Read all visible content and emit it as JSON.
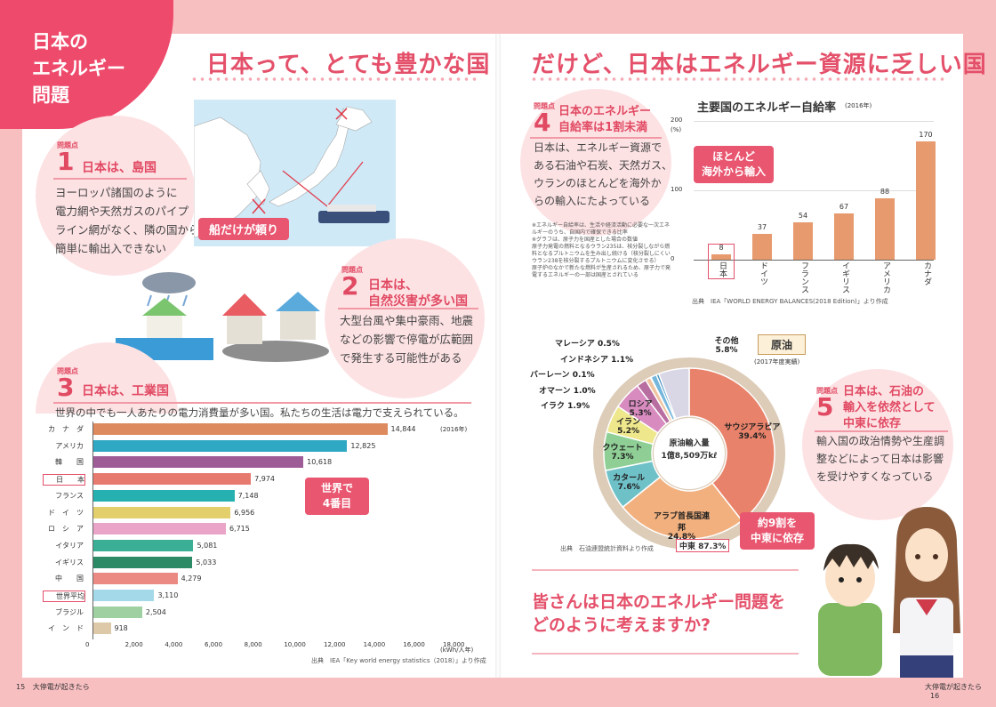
{
  "corner_title": "日本の\nエネルギー\n問題",
  "left_heading": "日本って、とても豊かな国",
  "right_heading": "だけど、日本はエネルギー資源に乏しい国",
  "point_word": "問題点",
  "point1": {
    "num": "1",
    "title": "日本は、島国",
    "text": "ヨーロッパ諸国のように\n電力網や天然ガスのパイプ\nライン網がなく、隣の国から\n簡単に輸出入できない"
  },
  "ship_label": "船だけが頼り",
  "point2": {
    "num": "2",
    "title": "日本は、\n自然災害が多い国",
    "text": "大型台風や集中豪雨、地震\nなどの影響で停電が広範囲\nで発生する可能性がある"
  },
  "point3": {
    "num": "3",
    "title": "日本は、工業国",
    "text": "世界の中でも一人あたりの電力消費量が多い国。私たちの生活は電力で支えられている。"
  },
  "point4": {
    "num": "4",
    "title": "日本のエネルギー\n自給率は1割未満",
    "text": "日本は、エネルギー資源で\nある石油や石炭、天然ガス、\nウランのほとんどを海外か\nらの輸入にたよっている"
  },
  "point4_note": "※エネルギー自給率は、生活や経済活動に必要な一次エネルギーのうち、自国内で確保できる比率\n※グラフは、原子力を国産とした場合の数値\n原子力発電の燃料となるウラン235は、核分裂しながら燃料となるプルトニウムを生み出し続ける（核分裂しにくいウラン238を核分裂するプルトニウムに変化させる）\n原子炉のなかで新たな燃料が生産されるため、原子力で発電するエネルギーの一部は国産とされている",
  "point5": {
    "num": "5",
    "title": "日本は、石油の\n輸入を依然として\n中東に依存",
    "text": "輸入国の政治情勢や生産調\n整などによって日本は影響\nを受けやすくなっている"
  },
  "question": "皆さんは日本のエネルギー問題を\nどのように考えますか?",
  "page_left": {
    "num": "15",
    "label": "大停電が起きたら"
  },
  "page_right": {
    "num": "16",
    "label": "大停電が起きたら"
  },
  "chart_data": [
    {
      "type": "bar",
      "orientation": "horizontal",
      "year_note": "(2016年)",
      "categories": [
        "カ　ナ　ダ",
        "アメリカ",
        "韓　　国",
        "日　　本",
        "フランス",
        "ド　イ　ツ",
        "ロ　シ　ア",
        "イタリア",
        "イギリス",
        "中　　国",
        "世界平均",
        "ブラジル",
        "イ　ン　ド"
      ],
      "values": [
        14844,
        12825,
        10618,
        7974,
        7148,
        6956,
        6715,
        5081,
        5033,
        4279,
        3110,
        2504,
        918
      ],
      "value_labels": [
        "14,844",
        "12,825",
        "10,618",
        "7,974",
        "7,148",
        "6,956",
        "6,715",
        "5,081",
        "5,033",
        "4,279",
        "3,110",
        "2,504",
        "918"
      ],
      "colors": [
        "#dc8a5e",
        "#2fa8c4",
        "#9e5c96",
        "#e77a6f",
        "#27b0b0",
        "#e3d06d",
        "#e9a4c8",
        "#3aaf95",
        "#2c8a67",
        "#ea8a82",
        "#a3d9e8",
        "#9ed0a1",
        "#ddc9a8"
      ],
      "xticks": [
        "0",
        "2,000",
        "4,000",
        "6,000",
        "8,000",
        "10,000",
        "12,000",
        "14,000",
        "16,000",
        "18,000"
      ],
      "xlim": [
        0,
        18000
      ],
      "unit": "(kWh/人年)",
      "callout": "世界で\n4番目",
      "source": "出典　IEA「Key world energy statistics（2018）」より作成"
    },
    {
      "type": "bar",
      "title": "主要国のエネルギー自給率",
      "title_note": "(2016年)",
      "ylabel": "(%)",
      "categories": [
        "日本",
        "ドイツ",
        "フランス",
        "イギリス",
        "アメリカ",
        "カナダ"
      ],
      "values": [
        8,
        37,
        54,
        67,
        88,
        170
      ],
      "value_labels": [
        "8",
        "37",
        "54",
        "67",
        "88",
        "170"
      ],
      "yticks": [
        "0",
        "100",
        "200"
      ],
      "ylim": [
        0,
        200
      ],
      "color": "#e79a6d",
      "callout": "ほとんど\n海外から輸入",
      "source": "出典　IEA「WORLD ENERGY BALANCES(2018 Edition)」より作成"
    },
    {
      "type": "pie",
      "title": "原油",
      "title_note": "(2017年度実績)",
      "center_label": "原油輸入量\n1億8,509万kℓ",
      "inner": [
        {
          "label": "サウジアラビア",
          "value": 39.4,
          "text": "39.4%",
          "color": "#e9826a"
        },
        {
          "label": "アラブ首長国連邦",
          "value": 24.8,
          "text": "24.8%",
          "color": "#f2b07e"
        },
        {
          "label": "カタール",
          "value": 7.6,
          "text": "7.6%",
          "color": "#6fc1c8"
        },
        {
          "label": "クウェート",
          "value": 7.3,
          "text": "7.3%",
          "color": "#8fcf96"
        },
        {
          "label": "イラン",
          "value": 5.2,
          "text": "5.2%",
          "color": "#efe78c"
        },
        {
          "label": "ロシア",
          "value": 5.3,
          "text": "5.3%",
          "color": "#d78bbf"
        },
        {
          "label": "イラク",
          "value": 1.9,
          "text": "1.9%",
          "color": "#b86ea0"
        },
        {
          "label": "オマーン",
          "value": 1.0,
          "text": "1.0%",
          "color": "#f0c4a0"
        },
        {
          "label": "バーレーン",
          "value": 0.1,
          "text": "0.1%",
          "color": "#9bc5e8"
        },
        {
          "label": "インドネシア",
          "value": 1.1,
          "text": "1.1%",
          "color": "#75b7dc"
        },
        {
          "label": "マレーシア",
          "value": 0.5,
          "text": "0.5%",
          "color": "#3d8fbf"
        },
        {
          "label": "その他",
          "value": 5.8,
          "text": "5.8%",
          "color": "#d9d6e6"
        }
      ],
      "outer_label": "中東 87.3%",
      "callout": "約9割を\n中東に依存",
      "source": "出典　石油連盟統計資料より作成"
    }
  ]
}
